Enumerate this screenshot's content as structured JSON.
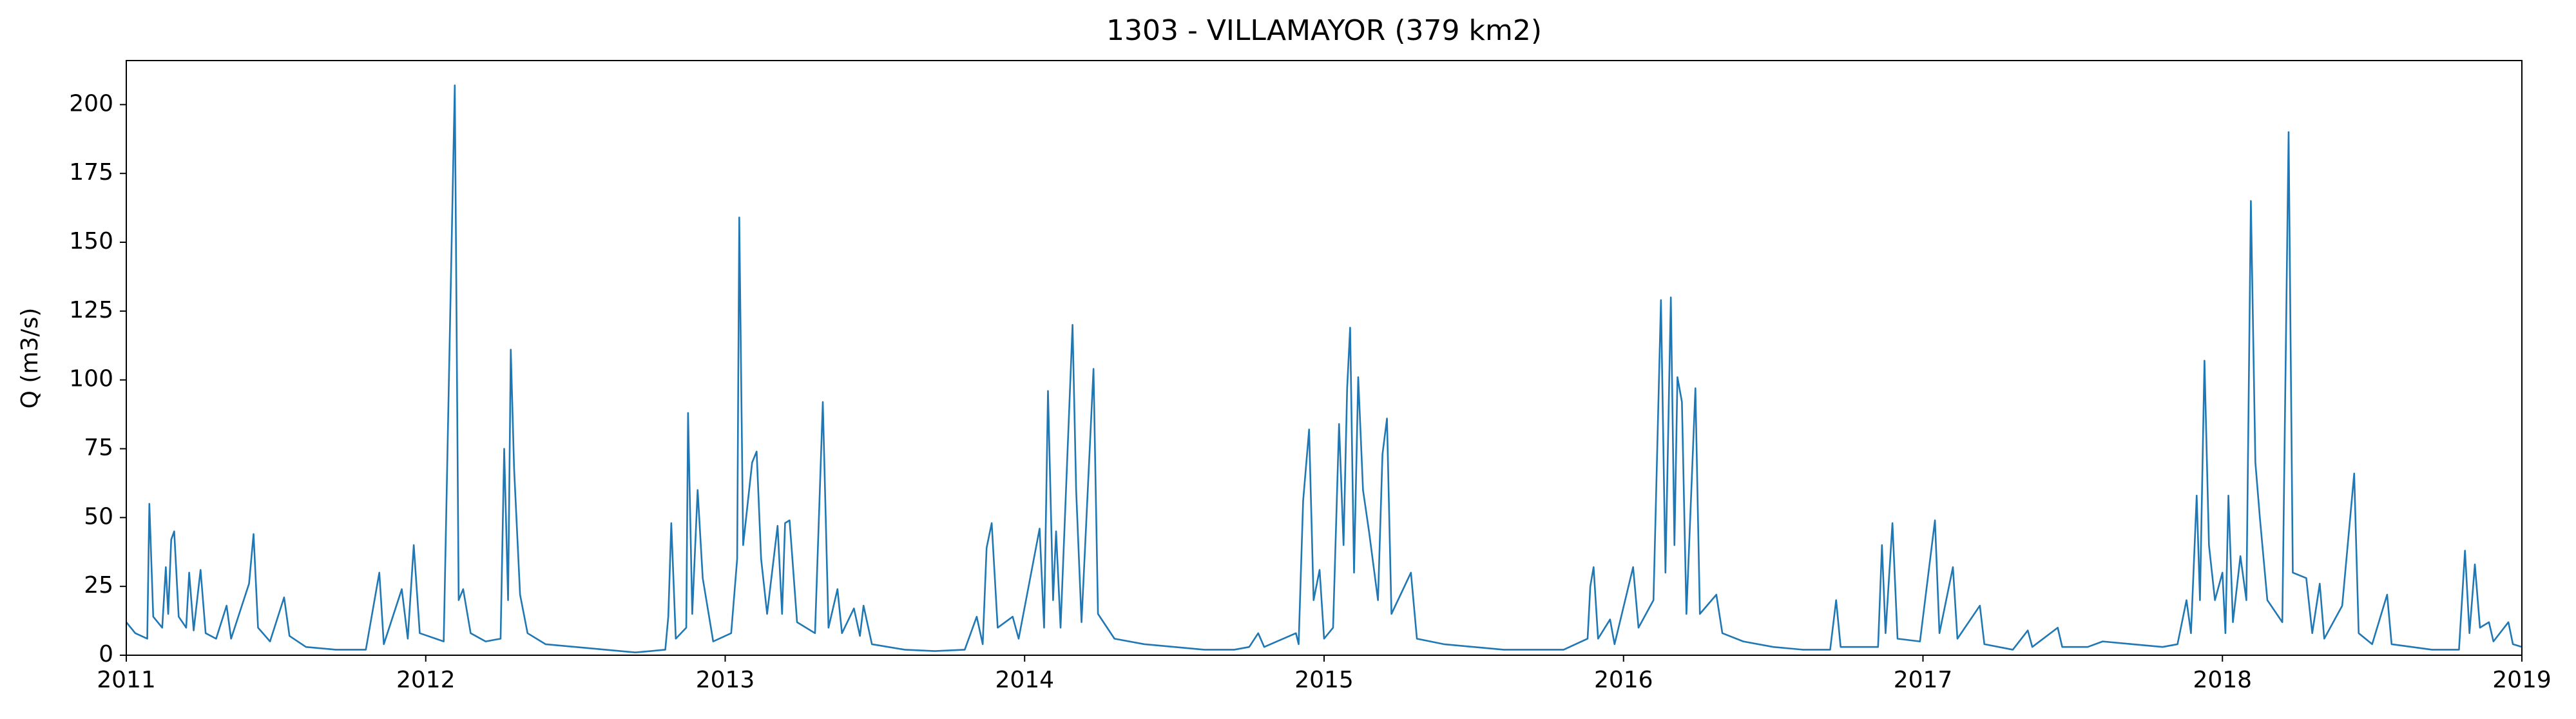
{
  "chart_data": {
    "type": "line",
    "title": "1303 - VILLAMAYOR (379 km2)",
    "y_label": "Q (m3/s)",
    "x": [
      2011.0,
      2011.03,
      2011.07,
      2011.077,
      2011.09,
      2011.12,
      2011.132,
      2011.14,
      2011.15,
      2011.16,
      2011.175,
      2011.2,
      2011.21,
      2011.225,
      2011.248,
      2011.265,
      2011.3,
      2011.335,
      2011.35,
      2011.41,
      2011.425,
      2011.44,
      2011.48,
      2011.527,
      2011.545,
      2011.6,
      2011.7,
      2011.8,
      2011.845,
      2011.86,
      2011.92,
      2011.94,
      2011.96,
      2011.98,
      2012.06,
      2012.097,
      2012.11,
      2012.125,
      2012.15,
      2012.2,
      2012.25,
      2012.262,
      2012.275,
      2012.284,
      2012.295,
      2012.315,
      2012.34,
      2012.4,
      2012.5,
      2012.6,
      2012.7,
      2012.8,
      2012.81,
      2012.82,
      2012.835,
      2012.87,
      2012.876,
      2012.89,
      2012.908,
      2012.925,
      2012.96,
      2013.02,
      2013.04,
      2013.047,
      2013.06,
      2013.075,
      2013.09,
      2013.105,
      2013.12,
      2013.14,
      2013.175,
      2013.19,
      2013.2,
      2013.215,
      2013.24,
      2013.3,
      2013.326,
      2013.345,
      2013.375,
      2013.39,
      2013.43,
      2013.45,
      2013.462,
      2013.49,
      2013.6,
      2013.7,
      2013.8,
      2013.84,
      2013.86,
      2013.873,
      2013.89,
      2013.91,
      2013.96,
      2013.98,
      2014.05,
      2014.065,
      2014.078,
      2014.095,
      2014.105,
      2014.12,
      2014.16,
      2014.172,
      2014.19,
      2014.23,
      2014.245,
      2014.3,
      2014.4,
      2014.5,
      2014.6,
      2014.7,
      2014.75,
      2014.78,
      2014.8,
      2014.906,
      2014.915,
      2014.93,
      2014.95,
      2014.965,
      2014.985,
      2015.0,
      2015.03,
      2015.05,
      2015.065,
      2015.077,
      2015.087,
      2015.1,
      2015.114,
      2015.13,
      2015.15,
      2015.18,
      2015.195,
      2015.21,
      2015.225,
      2015.29,
      2015.31,
      2015.4,
      2015.5,
      2015.6,
      2015.7,
      2015.8,
      2015.88,
      2015.889,
      2015.9,
      2015.915,
      2015.955,
      2015.97,
      2016.032,
      2016.05,
      2016.1,
      2016.125,
      2016.14,
      2016.158,
      2016.17,
      2016.18,
      2016.195,
      2016.21,
      2016.24,
      2016.255,
      2016.31,
      2016.33,
      2016.4,
      2016.5,
      2016.6,
      2016.69,
      2016.71,
      2016.725,
      2016.85,
      2016.863,
      2016.875,
      2016.898,
      2016.915,
      2016.99,
      2017.04,
      2017.055,
      2017.1,
      2017.115,
      2017.19,
      2017.205,
      2017.3,
      2017.35,
      2017.365,
      2017.45,
      2017.465,
      2017.55,
      2017.6,
      2017.7,
      2017.8,
      2017.85,
      2017.88,
      2017.895,
      2017.914,
      2017.925,
      2017.94,
      2017.955,
      2017.975,
      2018.0,
      2018.01,
      2018.02,
      2018.035,
      2018.06,
      2018.08,
      2018.095,
      2018.11,
      2018.125,
      2018.15,
      2018.2,
      2018.221,
      2018.235,
      2018.28,
      2018.3,
      2018.325,
      2018.34,
      2018.4,
      2018.44,
      2018.455,
      2018.5,
      2018.55,
      2018.565,
      2018.7,
      2018.79,
      2018.81,
      2018.825,
      2018.843,
      2018.86,
      2018.89,
      2018.905,
      2018.955,
      2018.97,
      2019.0
    ],
    "series": [
      {
        "color": "#1f77b4",
        "values": [
          12,
          8,
          6,
          55,
          14,
          10,
          32,
          15,
          42,
          45,
          14,
          10,
          30,
          9,
          31,
          8,
          6,
          18,
          6,
          26,
          44,
          10,
          5,
          21,
          7,
          3,
          2,
          2,
          30,
          4,
          24,
          6,
          40,
          8,
          5,
          207,
          20,
          24,
          8,
          5,
          6,
          75,
          20,
          111,
          68,
          22,
          8,
          4,
          3,
          2,
          1,
          2,
          14,
          48,
          6,
          10,
          88,
          15,
          60,
          28,
          5,
          8,
          35,
          159,
          40,
          55,
          70,
          74,
          35,
          15,
          47,
          15,
          48,
          49,
          12,
          8,
          92,
          10,
          24,
          8,
          17,
          7,
          18,
          4,
          2,
          1.5,
          2,
          14,
          4,
          39,
          48,
          10,
          14,
          6,
          46,
          10,
          96,
          20,
          45,
          10,
          120,
          60,
          12,
          104,
          15,
          6,
          4,
          3,
          2,
          2,
          3,
          8,
          3,
          8,
          4,
          56,
          82,
          20,
          31,
          6,
          10,
          84,
          40,
          97,
          119,
          30,
          101,
          60,
          45,
          20,
          73,
          86,
          15,
          30,
          6,
          4,
          3,
          2,
          2,
          2,
          6,
          25,
          32,
          6,
          13,
          4,
          32,
          10,
          20,
          129,
          30,
          130,
          40,
          101,
          92,
          15,
          97,
          15,
          22,
          8,
          5,
          3,
          2,
          2,
          20,
          3,
          3,
          40,
          8,
          48,
          6,
          5,
          49,
          8,
          32,
          6,
          18,
          4,
          2,
          9,
          3,
          10,
          3,
          3,
          5,
          4,
          3,
          4,
          20,
          8,
          58,
          20,
          107,
          40,
          20,
          30,
          8,
          58,
          12,
          36,
          20,
          165,
          70,
          50,
          20,
          12,
          190,
          30,
          28,
          8,
          26,
          6,
          18,
          66,
          8,
          4,
          22,
          4,
          2,
          2,
          38,
          8,
          33,
          10,
          12,
          5,
          12,
          4,
          3
        ]
      }
    ],
    "xlim": [
      2011,
      2019
    ],
    "xticks": [
      2011,
      2012,
      2013,
      2014,
      2015,
      2016,
      2017,
      2018,
      2019
    ],
    "ylim": [
      0,
      216
    ],
    "yticks": [
      0,
      25,
      50,
      75,
      100,
      125,
      150,
      175,
      200
    ],
    "grid": false
  }
}
